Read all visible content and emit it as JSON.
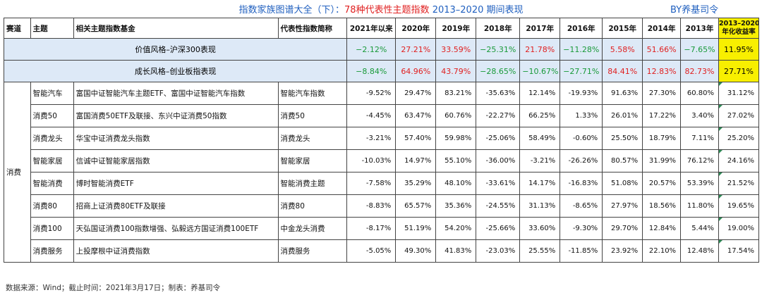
{
  "header": {
    "title_part1": "指数家族图谱大全（下）：",
    "title_highlight": "78种代表性主题指数",
    "title_part2": " 2013–2020 期间表现",
    "byline": "BY养基司令"
  },
  "columns": {
    "track": "赛道",
    "theme": "主题",
    "funds": "相关主题指数基金",
    "index": "代表性指数简称",
    "y2021": "2021年以来",
    "y2020": "2020年",
    "y2019": "2019年",
    "y2018": "2018年",
    "y2017": "2017年",
    "y2016": "2016年",
    "y2015": "2015年",
    "y2014": "2014年",
    "y2013": "2013年",
    "annual_line1": "2013–2020",
    "annual_line2": "年化收益率"
  },
  "benchmarks": [
    {
      "name": "价值风格–沪深300表现",
      "y2021": "−2.12%",
      "y2020": "27.21%",
      "y2019": "33.59%",
      "y2018": "−25.31%",
      "y2017": "21.78%",
      "y2016": "−11.28%",
      "y2015": "5.58%",
      "y2014": "51.66%",
      "y2013": "−7.65%",
      "annual": "11.95%"
    },
    {
      "name": "成长风格–创业板指表现",
      "y2021": "−8.84%",
      "y2020": "64.96%",
      "y2019": "43.79%",
      "y2018": "−28.65%",
      "y2017": "−10.67%",
      "y2016": "−27.71%",
      "y2015": "84.41%",
      "y2014": "12.83%",
      "y2013": "82.73%",
      "annual": "27.71%"
    }
  ],
  "track_name": "消费",
  "rows": [
    {
      "theme": "智能汽车",
      "funds": "富国中证智能汽车主题ETF、富国中证智能汽车指数",
      "index": "智能汽车指数",
      "y2021": "-9.52%",
      "y2020": "29.47%",
      "y2019": "83.21%",
      "y2018": "-35.63%",
      "y2017": "12.14%",
      "y2016": "-19.93%",
      "y2015": "91.63%",
      "y2014": "27.30%",
      "y2013": "60.80%",
      "annual": "31.12%"
    },
    {
      "theme": "消费50",
      "funds": "富国消费50ETF及联接、东兴中证消费50指数",
      "index": "消费50",
      "y2021": "-4.45%",
      "y2020": "63.47%",
      "y2019": "60.76%",
      "y2018": "-22.27%",
      "y2017": "66.25%",
      "y2016": "1.33%",
      "y2015": "26.01%",
      "y2014": "17.22%",
      "y2013": "3.40%",
      "annual": "27.02%"
    },
    {
      "theme": "消费龙头",
      "funds": "华宝中证消费龙头指数",
      "index": "消费龙头",
      "y2021": "-3.21%",
      "y2020": "57.40%",
      "y2019": "59.98%",
      "y2018": "-25.06%",
      "y2017": "58.49%",
      "y2016": "-0.60%",
      "y2015": "25.50%",
      "y2014": "18.79%",
      "y2013": "7.11%",
      "annual": "25.20%"
    },
    {
      "theme": "智能家居",
      "funds": "信诚中证智能家居指数",
      "index": "智能家居",
      "y2021": "-10.03%",
      "y2020": "14.97%",
      "y2019": "55.10%",
      "y2018": "-36.00%",
      "y2017": "-3.21%",
      "y2016": "-26.26%",
      "y2015": "80.57%",
      "y2014": "31.99%",
      "y2013": "76.12%",
      "annual": "24.16%"
    },
    {
      "theme": "智能消费",
      "funds": "博时智能消费ETF",
      "index": "智能消费主题",
      "y2021": "-7.58%",
      "y2020": "35.29%",
      "y2019": "48.10%",
      "y2018": "-33.61%",
      "y2017": "14.17%",
      "y2016": "-16.83%",
      "y2015": "51.08%",
      "y2014": "20.57%",
      "y2013": "53.39%",
      "annual": "21.52%"
    },
    {
      "theme": "消费80",
      "funds": "招商上证消费80ETF及联接",
      "index": "消费80",
      "y2021": "-8.83%",
      "y2020": "65.57%",
      "y2019": "35.36%",
      "y2018": "-24.55%",
      "y2017": "31.13%",
      "y2016": "-8.65%",
      "y2015": "27.97%",
      "y2014": "18.56%",
      "y2013": "11.80%",
      "annual": "19.65%"
    },
    {
      "theme": "消费100",
      "funds": "天弘国证消费100指数增强、弘毅远方国证消费100ETF",
      "index": "中金龙头消费",
      "y2021": "-8.17%",
      "y2020": "51.19%",
      "y2019": "54.20%",
      "y2018": "-25.66%",
      "y2017": "33.60%",
      "y2016": "-9.30%",
      "y2015": "29.70%",
      "y2014": "12.84%",
      "y2013": "5.44%",
      "annual": "19.00%"
    },
    {
      "theme": "消费服务",
      "funds": "上投摩根中证消费指数",
      "index": "消费服务",
      "y2021": "-5.05%",
      "y2020": "49.30%",
      "y2019": "41.83%",
      "y2018": "-23.03%",
      "y2017": "25.55%",
      "y2016": "-11.85%",
      "y2015": "23.92%",
      "y2014": "22.10%",
      "y2013": "12.48%",
      "annual": "17.54%"
    }
  ],
  "footer": "数据来源：Wind；截止时间：2021年3月17日；制表：养基司令",
  "colors": {
    "positive": "#e02020",
    "negative": "#1a9a3a",
    "title": "#1f5fbf",
    "highlight": "#f8ef00",
    "benchmark_bg": "#dde9f7"
  }
}
